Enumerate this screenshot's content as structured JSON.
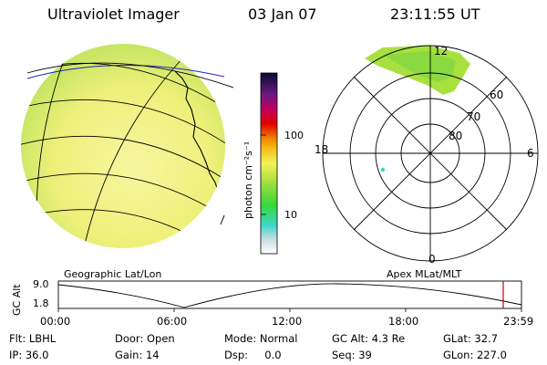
{
  "header": {
    "instrument": "Ultraviolet Imager",
    "date": "03 Jan 07",
    "time": "23:11:55 UT"
  },
  "colorbar": {
    "unit_label": "photon cm⁻²s⁻¹",
    "ticks": [
      "100",
      "10"
    ]
  },
  "globe_panel": {
    "label": "Geographic Lat/Lon"
  },
  "polar_panel": {
    "label": "Apex  MLat/MLT",
    "mlt_labels": {
      "top": "12",
      "right": "6",
      "bottom": "0",
      "left": "18"
    },
    "lat_labels": [
      "60",
      "70",
      "80"
    ]
  },
  "altitude_plot": {
    "ylabel": "GC Alt",
    "ytick_top": "9.0",
    "ytick_bottom": "1.8",
    "xticks": [
      "00:00",
      "06:00",
      "12:00",
      "18:00",
      "23:59"
    ],
    "marker_color": "#cc0000"
  },
  "info": {
    "row1": [
      "Flt: LBHL",
      "Door: Open",
      "Mode: Normal",
      "GC Alt: 4.3 Re",
      "GLat: 32.7"
    ],
    "row2": [
      "IP: 36.0",
      "Gain: 14",
      "Dsp:     0.0",
      "Seq: 39",
      "GLon: 227.0"
    ]
  }
}
